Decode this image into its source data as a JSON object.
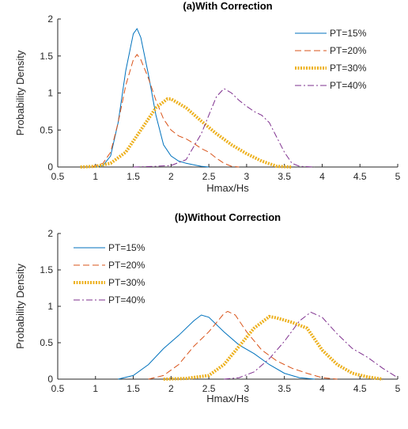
{
  "chart_data": [
    {
      "type": "line",
      "title": "(a)With Correction",
      "xlabel": "Hmax/Hs",
      "ylabel": "Probability Density",
      "xlim": [
        0.5,
        5
      ],
      "ylim": [
        0,
        2
      ],
      "xticks": [
        0.5,
        1,
        1.5,
        2,
        2.5,
        3,
        3.5,
        4,
        4.5,
        5
      ],
      "yticks": [
        0,
        0.5,
        1,
        1.5,
        2
      ],
      "legend": "upper right",
      "series": [
        {
          "name": "PT=15%",
          "color": "#0072bd",
          "dash": "solid",
          "linewidth": 1,
          "x": [
            1.0,
            1.1,
            1.2,
            1.3,
            1.4,
            1.5,
            1.55,
            1.6,
            1.7,
            1.8,
            1.9,
            2.0,
            2.1,
            2.2,
            2.3,
            2.4,
            2.5
          ],
          "values": [
            0,
            0.02,
            0.15,
            0.6,
            1.3,
            1.8,
            1.87,
            1.75,
            1.25,
            0.7,
            0.3,
            0.15,
            0.08,
            0.05,
            0.03,
            0.01,
            0
          ]
        },
        {
          "name": "PT=20%",
          "color": "#d95319",
          "dash": "dashed",
          "linewidth": 1,
          "x": [
            0.95,
            1.1,
            1.2,
            1.3,
            1.4,
            1.5,
            1.55,
            1.6,
            1.7,
            1.8,
            1.9,
            2.0,
            2.1,
            2.2,
            2.3,
            2.4,
            2.5,
            2.6,
            2.7,
            2.8,
            2.9
          ],
          "values": [
            0,
            0.05,
            0.2,
            0.6,
            1.1,
            1.45,
            1.52,
            1.45,
            1.2,
            0.9,
            0.65,
            0.5,
            0.42,
            0.38,
            0.32,
            0.25,
            0.2,
            0.12,
            0.05,
            0.01,
            0
          ]
        },
        {
          "name": "PT=30%",
          "color": "#edb120",
          "dash": "dotted",
          "linewidth": 4,
          "x": [
            0.8,
            1.0,
            1.2,
            1.4,
            1.6,
            1.8,
            1.95,
            2.0,
            2.2,
            2.4,
            2.6,
            2.8,
            3.0,
            3.2,
            3.4,
            3.6
          ],
          "values": [
            0,
            0.01,
            0.05,
            0.2,
            0.5,
            0.8,
            0.92,
            0.92,
            0.8,
            0.62,
            0.45,
            0.3,
            0.18,
            0.08,
            0.01,
            0
          ]
        },
        {
          "name": "PT=40%",
          "color": "#7e2f8e",
          "dash": "dashdot",
          "linewidth": 1,
          "x": [
            1.5,
            1.8,
            2.0,
            2.2,
            2.4,
            2.5,
            2.6,
            2.7,
            2.8,
            2.9,
            3.0,
            3.1,
            3.2,
            3.3,
            3.4,
            3.5,
            3.6,
            3.7,
            3.9
          ],
          "values": [
            0,
            0.01,
            0.02,
            0.1,
            0.45,
            0.7,
            0.95,
            1.06,
            1.0,
            0.9,
            0.82,
            0.75,
            0.7,
            0.6,
            0.4,
            0.2,
            0.05,
            0.01,
            0
          ]
        }
      ]
    },
    {
      "type": "line",
      "title": "(b)Without Correction",
      "xlabel": "Hmax/Hs",
      "ylabel": "Probability Density",
      "xlim": [
        0.5,
        5
      ],
      "ylim": [
        0,
        2
      ],
      "xticks": [
        0.5,
        1,
        1.5,
        2,
        2.5,
        3,
        3.5,
        4,
        4.5,
        5
      ],
      "yticks": [
        0,
        0.5,
        1,
        1.5,
        2
      ],
      "legend": "upper left",
      "series": [
        {
          "name": "PT=15%",
          "color": "#0072bd",
          "dash": "solid",
          "linewidth": 1,
          "x": [
            1.3,
            1.5,
            1.7,
            1.9,
            2.1,
            2.3,
            2.4,
            2.5,
            2.7,
            2.9,
            3.1,
            3.3,
            3.5,
            3.7,
            3.9
          ],
          "values": [
            0,
            0.05,
            0.2,
            0.42,
            0.6,
            0.8,
            0.88,
            0.85,
            0.65,
            0.47,
            0.35,
            0.2,
            0.08,
            0.02,
            0
          ]
        },
        {
          "name": "PT=20%",
          "color": "#d95319",
          "dash": "dashed",
          "linewidth": 1,
          "x": [
            1.7,
            1.9,
            2.1,
            2.3,
            2.5,
            2.7,
            2.75,
            2.85,
            3.0,
            3.2,
            3.4,
            3.6,
            3.8,
            4.0,
            4.2
          ],
          "values": [
            0,
            0.05,
            0.2,
            0.45,
            0.65,
            0.9,
            0.93,
            0.88,
            0.65,
            0.4,
            0.25,
            0.15,
            0.08,
            0.02,
            0
          ]
        },
        {
          "name": "PT=30%",
          "color": "#edb120",
          "dash": "dotted",
          "linewidth": 4,
          "x": [
            1.9,
            2.2,
            2.5,
            2.7,
            2.9,
            3.1,
            3.3,
            3.4,
            3.6,
            3.8,
            3.9,
            4.0,
            4.2,
            4.4,
            4.6,
            4.8
          ],
          "values": [
            0,
            0.01,
            0.05,
            0.2,
            0.45,
            0.7,
            0.86,
            0.84,
            0.78,
            0.7,
            0.55,
            0.4,
            0.2,
            0.08,
            0.03,
            0
          ]
        },
        {
          "name": "PT=40%",
          "color": "#7e2f8e",
          "dash": "dashdot",
          "linewidth": 1,
          "x": [
            2.7,
            2.9,
            3.1,
            3.3,
            3.5,
            3.7,
            3.85,
            4.0,
            4.2,
            4.4,
            4.6,
            4.8,
            5.0
          ],
          "values": [
            0,
            0.02,
            0.1,
            0.28,
            0.52,
            0.8,
            0.92,
            0.85,
            0.62,
            0.42,
            0.3,
            0.15,
            0.02
          ]
        }
      ]
    }
  ]
}
